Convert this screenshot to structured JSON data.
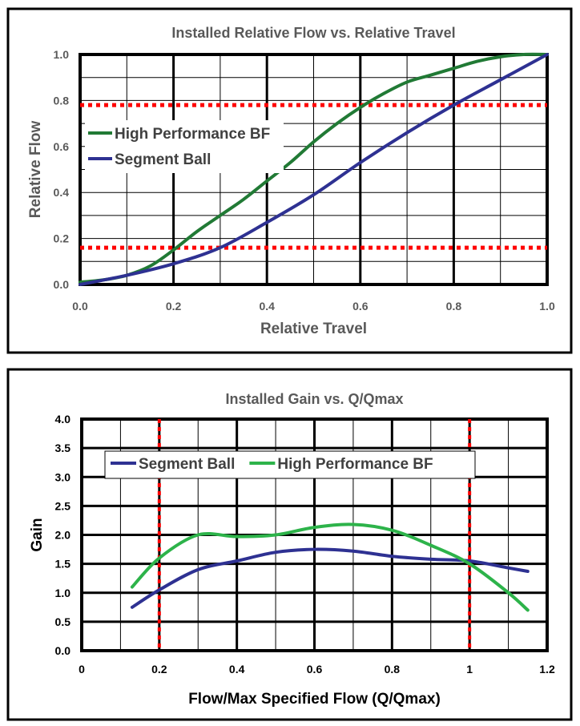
{
  "chart_data": [
    {
      "type": "line",
      "title": "Installed Relative Flow vs. Relative Travel",
      "xlabel": "Relative Travel",
      "ylabel": "Relative Flow",
      "xlim": [
        0,
        1
      ],
      "ylim": [
        0,
        1
      ],
      "xticks": [
        "0.0",
        "0.2",
        "0.4",
        "0.6",
        "0.8",
        "1.0"
      ],
      "yticks": [
        "0.0",
        "0.2",
        "0.4",
        "0.6",
        "0.8",
        "1.0"
      ],
      "grid": true,
      "legend_position": "center-left",
      "reference_lines": {
        "orientation": "horizontal",
        "values": [
          0.16,
          0.78
        ],
        "color": "#ff0000",
        "style": "dotted"
      },
      "series": [
        {
          "name": "High Performance BF",
          "color": "#217a35",
          "x": [
            0,
            0.05,
            0.1,
            0.15,
            0.2,
            0.25,
            0.3,
            0.35,
            0.4,
            0.45,
            0.5,
            0.55,
            0.6,
            0.65,
            0.7,
            0.75,
            0.8,
            0.85,
            0.9,
            0.95,
            1.0
          ],
          "y": [
            0.01,
            0.02,
            0.04,
            0.08,
            0.15,
            0.23,
            0.3,
            0.37,
            0.45,
            0.53,
            0.62,
            0.7,
            0.77,
            0.83,
            0.88,
            0.91,
            0.94,
            0.97,
            0.99,
            1.0,
            1.0
          ]
        },
        {
          "name": "Segment Ball",
          "color": "#2e3192",
          "x": [
            0,
            0.1,
            0.2,
            0.3,
            0.4,
            0.5,
            0.6,
            0.7,
            0.8,
            0.9,
            1.0
          ],
          "y": [
            0,
            0.04,
            0.09,
            0.16,
            0.27,
            0.39,
            0.53,
            0.66,
            0.78,
            0.89,
            1.0
          ]
        }
      ]
    },
    {
      "type": "line",
      "title": "Installed Gain vs. Q/Qmax",
      "xlabel": "Flow/Max Specified Flow (Q/Qmax)",
      "ylabel": "Gain",
      "xlim": [
        0,
        1.2
      ],
      "ylim": [
        0,
        4
      ],
      "xticks": [
        "0",
        "0.2",
        "0.4",
        "0.6",
        "0.8",
        "1",
        "1.2"
      ],
      "yticks": [
        "0.0",
        "0.5",
        "1.0",
        "1.5",
        "2.0",
        "2.5",
        "3.0",
        "3.5",
        "4.0"
      ],
      "grid": true,
      "legend_position": "top",
      "reference_lines": {
        "orientation": "vertical",
        "values": [
          0.2,
          1.0
        ],
        "color": "#ff0000",
        "style": "dotted"
      },
      "series": [
        {
          "name": "Segment Ball",
          "color": "#2e3192",
          "x": [
            0.13,
            0.2,
            0.3,
            0.4,
            0.5,
            0.6,
            0.7,
            0.8,
            0.9,
            1.0,
            1.1,
            1.15
          ],
          "y": [
            0.75,
            1.05,
            1.4,
            1.55,
            1.7,
            1.75,
            1.72,
            1.63,
            1.58,
            1.55,
            1.43,
            1.37
          ]
        },
        {
          "name": "High Performance BF",
          "color": "#2db34a",
          "x": [
            0.13,
            0.2,
            0.3,
            0.4,
            0.5,
            0.6,
            0.7,
            0.8,
            0.9,
            1.0,
            1.1,
            1.15
          ],
          "y": [
            1.1,
            1.6,
            2.0,
            1.97,
            2.0,
            2.13,
            2.18,
            2.08,
            1.82,
            1.5,
            1.0,
            0.7
          ]
        }
      ]
    }
  ]
}
